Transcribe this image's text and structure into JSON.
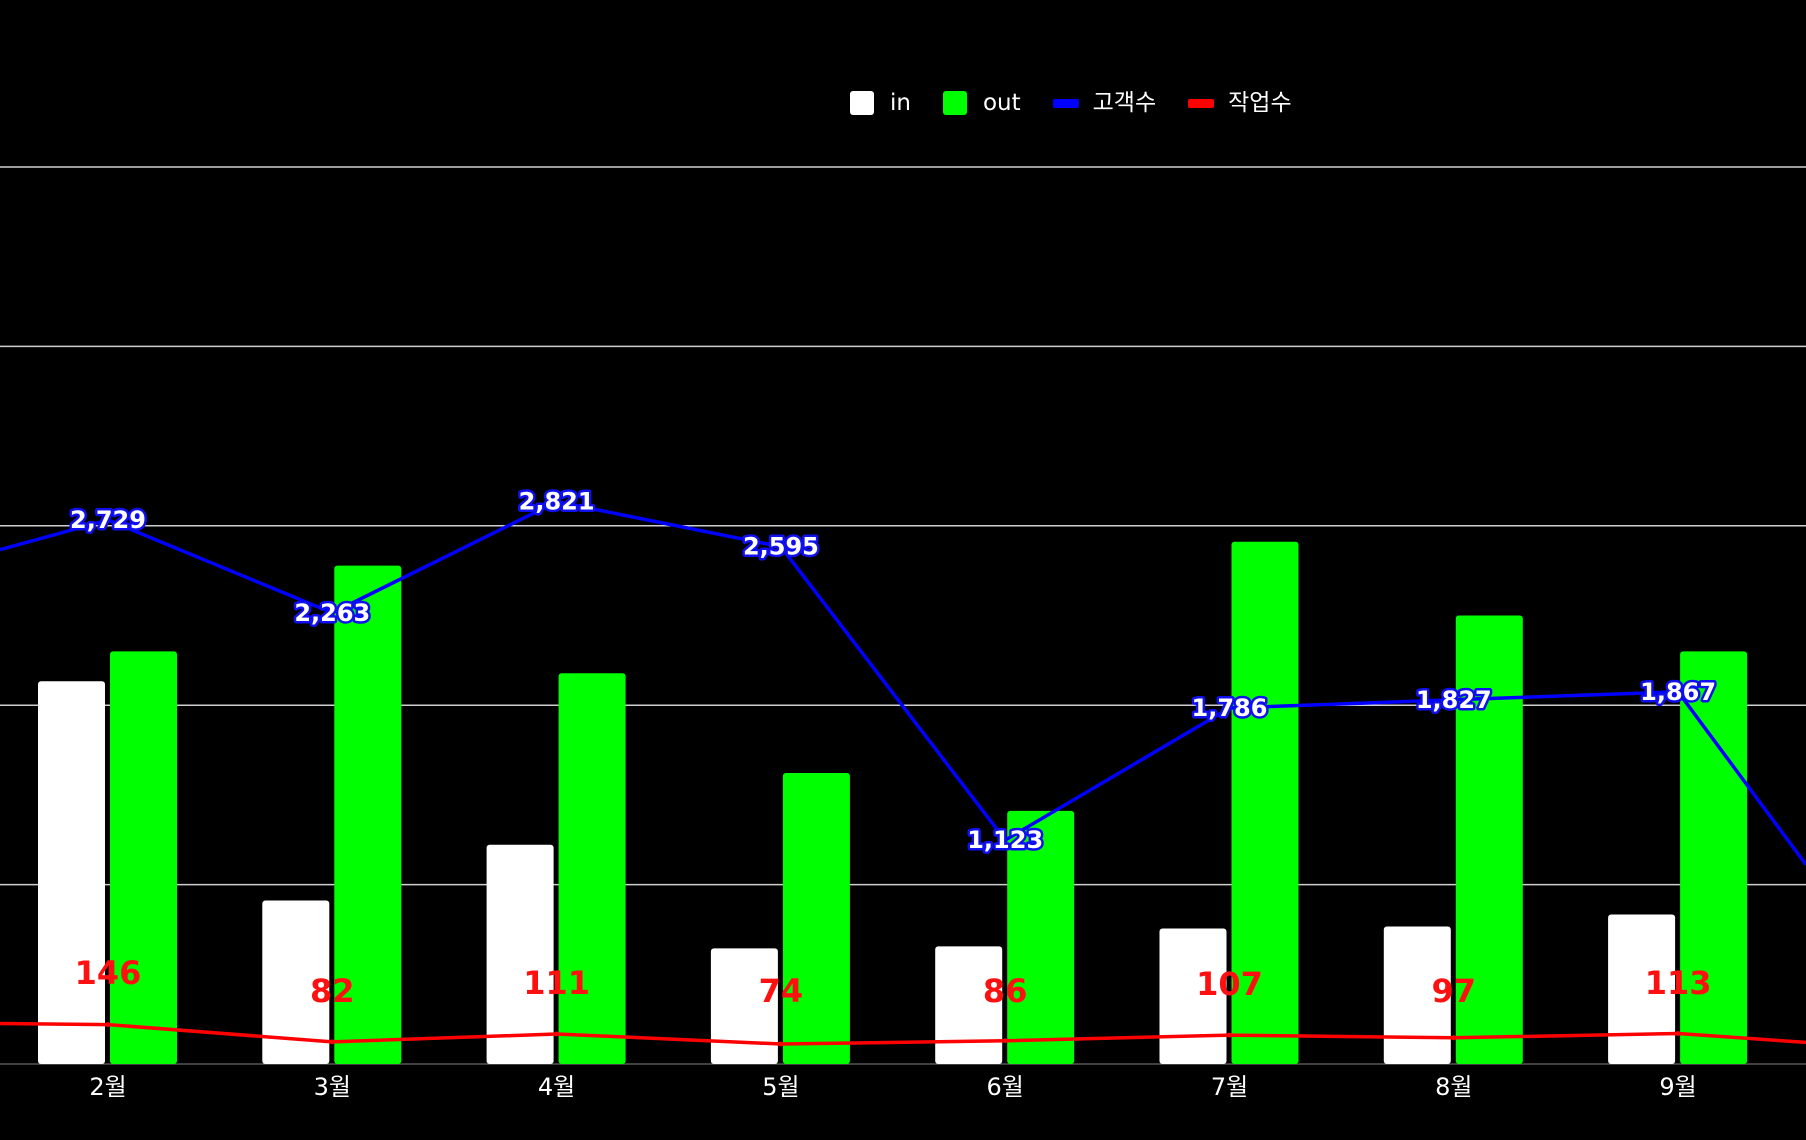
{
  "chart_data": {
    "type": "bar",
    "categories": [
      "2월",
      "3월",
      "4월",
      "5월",
      "6월",
      "7월",
      "8월",
      "9월"
    ],
    "series": [
      {
        "name": "in",
        "kind": "bar",
        "color": "#ffffff",
        "values": [
          1920,
          820,
          1100,
          580,
          590,
          680,
          690,
          750
        ]
      },
      {
        "name": "out",
        "kind": "bar",
        "color": "#00ff00",
        "values": [
          2070,
          2500,
          1960,
          1460,
          1270,
          2620,
          2250,
          2070
        ]
      },
      {
        "name": "고객수",
        "kind": "line",
        "color": "#0000ff",
        "values": [
          2729,
          2263,
          2821,
          2595,
          1123,
          1786,
          1827,
          1867
        ]
      },
      {
        "name": "작업수",
        "kind": "line",
        "color": "#ff0000",
        "values": [
          146,
          82,
          111,
          74,
          86,
          107,
          97,
          113
        ]
      }
    ],
    "series_labels": {
      "고객수": [
        "2,729",
        "2,263",
        "2,821",
        "2,595",
        "1,123",
        "1,786",
        "1,827",
        "1,867"
      ],
      "작업수": [
        "146",
        "82",
        "111",
        "74",
        "86",
        "107",
        "97",
        "113"
      ]
    },
    "partial_edges": {
      "고객수": {
        "before": 2580,
        "after": 1000
      },
      "작업수": {
        "before": 150,
        "after": 80
      }
    },
    "ylim": [
      0,
      4500
    ],
    "gridlines": [
      0,
      900,
      1800,
      2700,
      3600,
      4500
    ],
    "grid": true,
    "legend_position": "top-center",
    "title": "",
    "xlabel": "",
    "ylabel": ""
  }
}
